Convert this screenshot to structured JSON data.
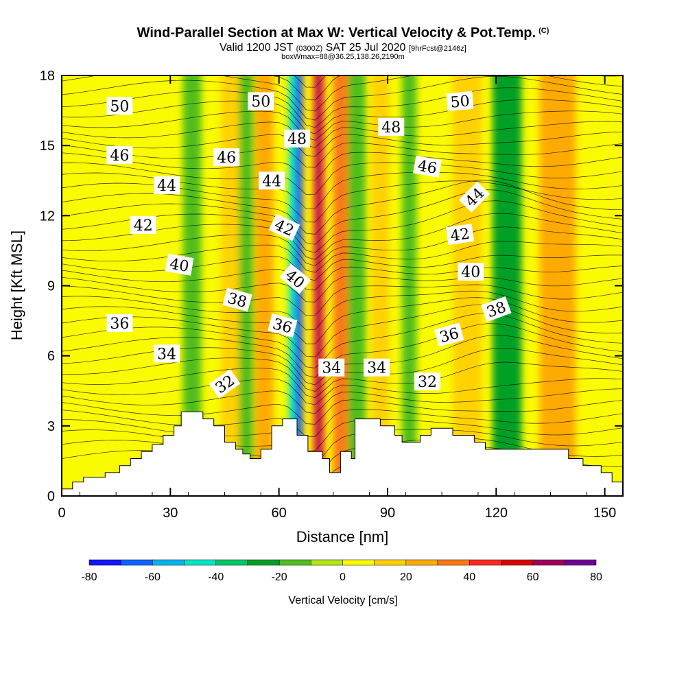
{
  "header": {
    "title": "Wind-Parallel Section at Max W: Vertical Velocity & Pot.Temp.",
    "title_mark": "(C)",
    "valid_main": "Valid 1200 JST",
    "valid_utc": "(0300Z)",
    "valid_date": "SAT 25 Jul 2020",
    "forecast": "[9hrFcst@2146z]",
    "box_info": "boxWmax=88@36.25,138.26,2190m"
  },
  "chart_data": {
    "type": "contour",
    "xlabel": "Distance [nm]",
    "ylabel": "Height [Kft MSL]",
    "xlim": [
      0,
      155
    ],
    "ylim": [
      0,
      18
    ],
    "xticks": [
      0,
      30,
      60,
      90,
      120,
      150
    ],
    "yticks": [
      0,
      3,
      6,
      9,
      12,
      15,
      18
    ],
    "colorbar": {
      "title": "Vertical Velocity [cm/s]",
      "tick_labels": [
        -80,
        -60,
        -40,
        -20,
        0,
        20,
        40,
        60,
        80
      ],
      "levels": [
        -80,
        -70,
        -60,
        -50,
        -40,
        -30,
        -20,
        -10,
        0,
        10,
        20,
        30,
        40,
        50,
        60,
        70,
        80
      ],
      "colors": [
        "#1414ff",
        "#0a64ff",
        "#00b4f0",
        "#00e6c8",
        "#00c864",
        "#00a028",
        "#50be1e",
        "#b4e614",
        "#fafa00",
        "#ffd200",
        "#ffaa00",
        "#ff7814",
        "#ff281e",
        "#dc0000",
        "#a0005a",
        "#6e0096"
      ]
    },
    "velocity_bands": [
      {
        "x": 17,
        "w": 14,
        "value": 5
      },
      {
        "x": 36,
        "w": 5,
        "value": -20
      },
      {
        "x": 47,
        "w": 6,
        "value": 10
      },
      {
        "x": 51,
        "w": 4,
        "value": -20
      },
      {
        "x": 56,
        "w": 5,
        "value": 20
      },
      {
        "x": 64.5,
        "w": 3.5,
        "value": -45
      },
      {
        "x": 65.5,
        "w": 1.8,
        "value": -75
      },
      {
        "x": 71,
        "w": 3,
        "value": 45
      },
      {
        "x": 71,
        "w": 1.5,
        "value": 65
      },
      {
        "x": 81,
        "w": 6,
        "value": -20
      },
      {
        "x": 88,
        "w": 5,
        "value": 15
      },
      {
        "x": 96,
        "w": 4,
        "value": -20
      },
      {
        "x": 112,
        "w": 8,
        "value": 15
      },
      {
        "x": 137,
        "w": 10,
        "value": 20
      },
      {
        "x": 77,
        "w": 4,
        "value": 30
      },
      {
        "x": 123,
        "w": 8,
        "value": -25
      }
    ],
    "contour_labels": [
      {
        "text": "50",
        "x": 16,
        "y": 16.7,
        "angle": 0
      },
      {
        "text": "50",
        "x": 55,
        "y": 16.9,
        "angle": 0
      },
      {
        "text": "50",
        "x": 110,
        "y": 16.9,
        "angle": -5
      },
      {
        "text": "48",
        "x": 65,
        "y": 15.3,
        "angle": 0
      },
      {
        "text": "48",
        "x": 91,
        "y": 15.8,
        "angle": 0
      },
      {
        "text": "46",
        "x": 16,
        "y": 14.6,
        "angle": 0
      },
      {
        "text": "46",
        "x": 45.5,
        "y": 14.5,
        "angle": 0
      },
      {
        "text": "46",
        "x": 101,
        "y": 14.1,
        "angle": 10
      },
      {
        "text": "44",
        "x": 29,
        "y": 13.3,
        "angle": 0
      },
      {
        "text": "44",
        "x": 58,
        "y": 13.5,
        "angle": 0
      },
      {
        "text": "44",
        "x": 114,
        "y": 12.8,
        "angle": -45
      },
      {
        "text": "42",
        "x": 22.5,
        "y": 11.6,
        "angle": 0
      },
      {
        "text": "42",
        "x": 61.5,
        "y": 11.5,
        "angle": 25
      },
      {
        "text": "42",
        "x": 110,
        "y": 11.2,
        "angle": -8
      },
      {
        "text": "40",
        "x": 32.5,
        "y": 9.9,
        "angle": 10
      },
      {
        "text": "40",
        "x": 64.5,
        "y": 9.3,
        "angle": 40
      },
      {
        "text": "40",
        "x": 113,
        "y": 9.6,
        "angle": 0
      },
      {
        "text": "38",
        "x": 48.5,
        "y": 8.4,
        "angle": 15
      },
      {
        "text": "38",
        "x": 120,
        "y": 8.0,
        "angle": -20
      },
      {
        "text": "36",
        "x": 16,
        "y": 7.4,
        "angle": 0
      },
      {
        "text": "36",
        "x": 61,
        "y": 7.3,
        "angle": 15
      },
      {
        "text": "36",
        "x": 107,
        "y": 6.9,
        "angle": -15
      },
      {
        "text": "34",
        "x": 29,
        "y": 6.1,
        "angle": 0
      },
      {
        "text": "34",
        "x": 74.5,
        "y": 5.5,
        "angle": 0
      },
      {
        "text": "34",
        "x": 87,
        "y": 5.5,
        "angle": 0
      },
      {
        "text": "32",
        "x": 45,
        "y": 4.8,
        "angle": -35
      },
      {
        "text": "32",
        "x": 101,
        "y": 4.9,
        "angle": 0
      }
    ],
    "terrain": [
      [
        0,
        0.3
      ],
      [
        3,
        0.3
      ],
      [
        3,
        0.6
      ],
      [
        6,
        0.6
      ],
      [
        6,
        0.8
      ],
      [
        12,
        0.8
      ],
      [
        12,
        1.0
      ],
      [
        16,
        1.0
      ],
      [
        16,
        1.3
      ],
      [
        19,
        1.3
      ],
      [
        19,
        1.6
      ],
      [
        22,
        1.6
      ],
      [
        22,
        1.9
      ],
      [
        25,
        1.9
      ],
      [
        25,
        2.2
      ],
      [
        28,
        2.2
      ],
      [
        28,
        2.6
      ],
      [
        31,
        2.6
      ],
      [
        31,
        3.0
      ],
      [
        33,
        3.0
      ],
      [
        33,
        3.6
      ],
      [
        39,
        3.6
      ],
      [
        39,
        3.3
      ],
      [
        42,
        3.3
      ],
      [
        42,
        3.0
      ],
      [
        45,
        3.0
      ],
      [
        45,
        2.3
      ],
      [
        48,
        2.3
      ],
      [
        48,
        2.0
      ],
      [
        50,
        2.0
      ],
      [
        50,
        1.8
      ],
      [
        52,
        1.8
      ],
      [
        52,
        1.6
      ],
      [
        55,
        1.6
      ],
      [
        55,
        2.0
      ],
      [
        58,
        2.0
      ],
      [
        58,
        3.0
      ],
      [
        61,
        3.0
      ],
      [
        61,
        3.3
      ],
      [
        65,
        3.3
      ],
      [
        65,
        2.6
      ],
      [
        68,
        2.6
      ],
      [
        68,
        1.9
      ],
      [
        72,
        1.9
      ],
      [
        72,
        1.6
      ],
      [
        74,
        1.6
      ],
      [
        74,
        1.0
      ],
      [
        77,
        1.0
      ],
      [
        77,
        1.9
      ],
      [
        80,
        1.9
      ],
      [
        80,
        1.6
      ],
      [
        81,
        1.6
      ],
      [
        81,
        3.3
      ],
      [
        88,
        3.3
      ],
      [
        88,
        3.0
      ],
      [
        92,
        3.0
      ],
      [
        92,
        2.6
      ],
      [
        94,
        2.6
      ],
      [
        94,
        2.3
      ],
      [
        99,
        2.3
      ],
      [
        99,
        2.6
      ],
      [
        102,
        2.6
      ],
      [
        102,
        2.9
      ],
      [
        108,
        2.9
      ],
      [
        108,
        2.6
      ],
      [
        114,
        2.6
      ],
      [
        114,
        2.3
      ],
      [
        117,
        2.3
      ],
      [
        117,
        2.0
      ],
      [
        140,
        2.0
      ],
      [
        140,
        1.6
      ],
      [
        144,
        1.6
      ],
      [
        144,
        1.3
      ],
      [
        149,
        1.3
      ],
      [
        149,
        1.0
      ],
      [
        152,
        1.0
      ],
      [
        152,
        0.6
      ],
      [
        155,
        0.6
      ]
    ]
  }
}
